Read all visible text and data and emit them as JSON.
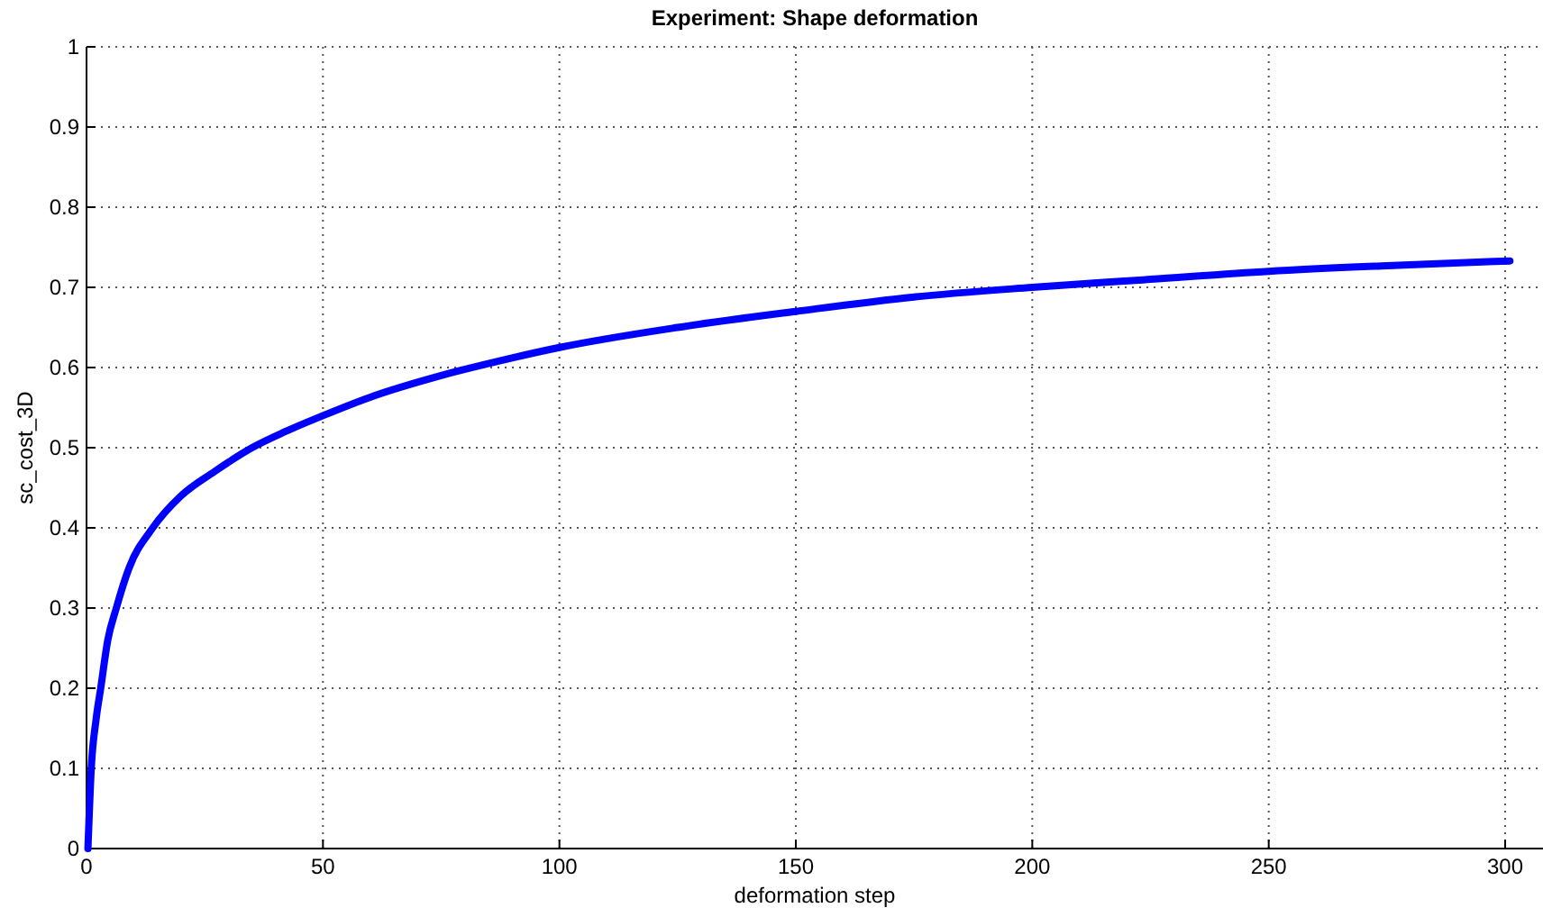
{
  "chart_data": {
    "type": "line",
    "title": "Experiment: Shape deformation",
    "xlabel": "deformation step",
    "ylabel": "sc_cost_3D",
    "x": [
      0.3,
      1,
      2,
      3,
      4.5,
      6.3,
      9,
      14,
      20,
      27,
      35,
      42,
      50,
      60,
      75,
      90,
      100,
      125,
      150,
      175,
      200,
      225,
      250,
      275,
      301
    ],
    "series": [
      {
        "color": "#0000ff",
        "values": [
          0,
          0.1,
          0.16,
          0.2,
          0.26,
          0.3,
          0.35,
          0.4,
          0.44,
          0.47,
          0.5,
          0.52,
          0.54,
          0.563,
          0.59,
          0.612,
          0.625,
          0.65,
          0.67,
          0.688,
          0.7,
          0.71,
          0.72,
          0.727,
          0.733
        ]
      }
    ],
    "xlim": [
      0,
      308
    ],
    "ylim": [
      0,
      1
    ],
    "xticks": [
      0,
      50,
      100,
      150,
      200,
      250,
      300
    ],
    "yticks": [
      0,
      0.1,
      0.2,
      0.3,
      0.4,
      0.5,
      0.6,
      0.7,
      0.8,
      0.9,
      1
    ],
    "grid": true,
    "line_style": "solid"
  }
}
